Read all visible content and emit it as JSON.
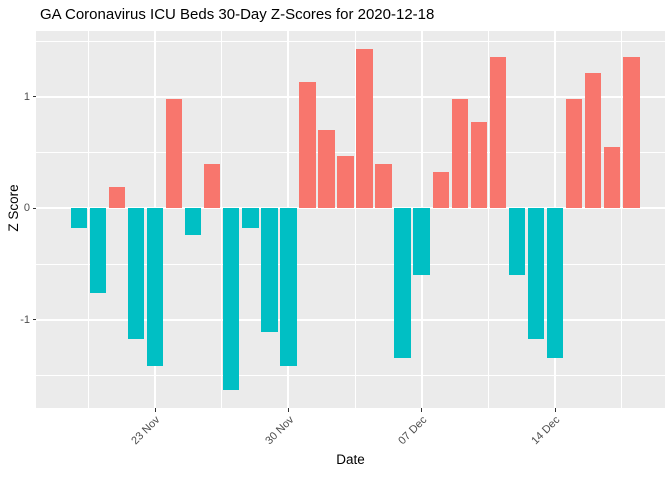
{
  "title": "GA Coronavirus ICU Beds 30-Day Z-Scores for 2020-12-18",
  "chart_data": {
    "type": "bar",
    "title": "GA Coronavirus ICU Beds 30-Day Z-Scores for 2020-12-18",
    "xlabel": "Date",
    "ylabel": "Z Score",
    "legend": "none",
    "grid": true,
    "ylim": [
      -1.79,
      1.59
    ],
    "dates": [
      "2020-11-19",
      "2020-11-20",
      "2020-11-21",
      "2020-11-22",
      "2020-11-23",
      "2020-11-24",
      "2020-11-25",
      "2020-11-26",
      "2020-11-27",
      "2020-11-28",
      "2020-11-29",
      "2020-11-30",
      "2020-12-01",
      "2020-12-02",
      "2020-12-03",
      "2020-12-04",
      "2020-12-05",
      "2020-12-06",
      "2020-12-07",
      "2020-12-08",
      "2020-12-09",
      "2020-12-10",
      "2020-12-11",
      "2020-12-12",
      "2020-12-13",
      "2020-12-14",
      "2020-12-15",
      "2020-12-16",
      "2020-12-17",
      "2020-12-18"
    ],
    "values": [
      -0.18,
      -0.76,
      0.19,
      -1.17,
      -1.41,
      0.98,
      -0.24,
      0.4,
      -1.63,
      -0.18,
      -1.11,
      -1.41,
      1.13,
      0.7,
      0.47,
      1.43,
      0.4,
      -1.34,
      -0.6,
      0.33,
      0.98,
      0.77,
      1.36,
      -0.6,
      -1.17,
      -1.34,
      0.98,
      1.21,
      0.55,
      1.36
    ],
    "x_ticks": [
      {
        "label": "23 Nov",
        "index": 4
      },
      {
        "label": "30 Nov",
        "index": 11
      },
      {
        "label": "07 Dec",
        "index": 18
      },
      {
        "label": "14 Dec",
        "index": 25
      }
    ],
    "x_minor_indices": [
      0.5,
      7.5,
      14.5,
      21.5,
      28.5
    ],
    "y_ticks": [
      {
        "label": "1",
        "value": 1
      },
      {
        "label": "0",
        "value": 0
      },
      {
        "label": "-1",
        "value": -1
      }
    ],
    "y_minor_values": [
      1.5,
      0.5,
      -0.5,
      -1.5
    ],
    "colors": {
      "positive": "#F8766D",
      "negative": "#00BFC4",
      "panel_bg": "#EBEBEB",
      "grid": "#FFFFFF",
      "tick_mark": "#333333",
      "tick_label": "#4D4D4D",
      "text": "#000000"
    }
  }
}
